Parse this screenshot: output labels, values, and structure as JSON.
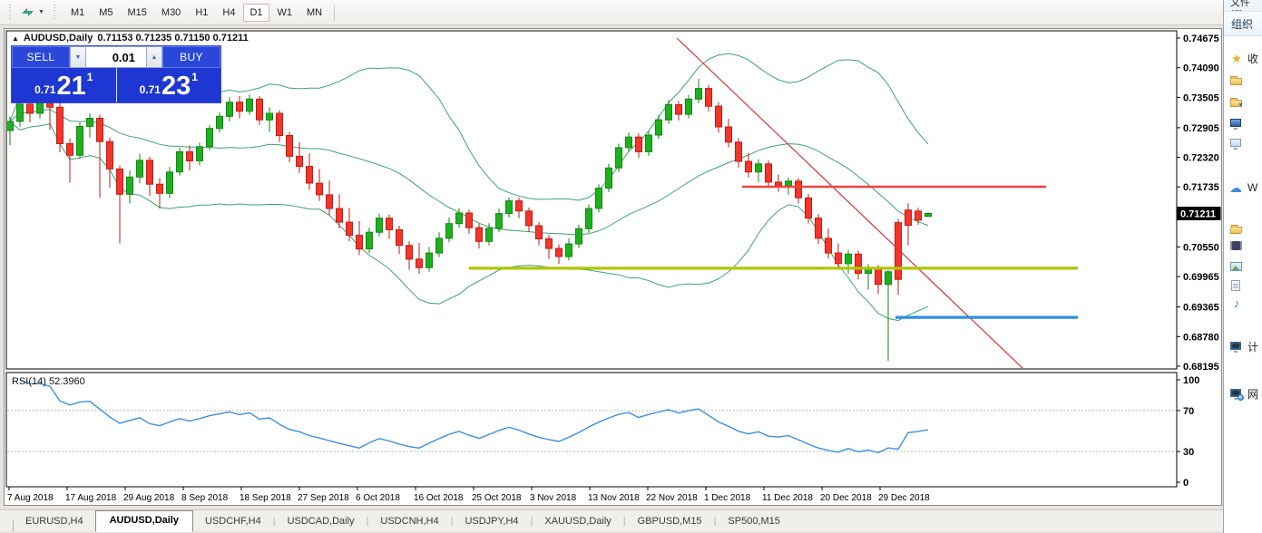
{
  "toolbar": {
    "timeframes": [
      "M1",
      "M5",
      "M15",
      "M30",
      "H1",
      "H4",
      "D1",
      "W1",
      "MN"
    ],
    "active_timeframe": "D1",
    "charts_icon": "charts-arrange-icon"
  },
  "chart": {
    "title": "AUDUSD,Daily",
    "title_marker": "▲",
    "ohlc_text": "0.71153 0.71235 0.71150 0.71211",
    "trade_panel": {
      "sell_label": "SELL",
      "buy_label": "BUY",
      "volume": "0.01",
      "spinner_up": "▲",
      "spinner_down": "▼",
      "sell_price_small": "0.71",
      "sell_price_big": "21",
      "sell_price_sup": "1",
      "buy_price_small": "0.71",
      "buy_price_big": "23",
      "buy_price_sup": "1"
    },
    "price_axis_labels": [
      "0.74675",
      "0.74090",
      "0.73505",
      "0.72905",
      "0.72320",
      "0.71735",
      "0.70550",
      "0.69965",
      "0.69365",
      "0.68780",
      "0.68195"
    ],
    "current_price": "0.71211",
    "date_labels": [
      "7 Aug 2018",
      "17 Aug 2018",
      "29 Aug 2018",
      "8 Sep 2018",
      "18 Sep 2018",
      "27 Sep 2018",
      "6 Oct 2018",
      "16 Oct 2018",
      "25 Oct 2018",
      "3 Nov 2018",
      "13 Nov 2018",
      "22 Nov 2018",
      "1 Dec 2018",
      "11 Dec 2018",
      "20 Dec 2018",
      "29 Dec 2018"
    ],
    "rsi_label": "RSI(14) 52.3960",
    "rsi_axis_labels": [
      "100",
      "70",
      "30",
      "0"
    ]
  },
  "chart_data": {
    "type": "candlestick",
    "symbol": "AUDUSD",
    "timeframe": "Daily",
    "title": "AUDUSD,Daily",
    "last_ohlc": {
      "open": 0.71153,
      "high": 0.71235,
      "low": 0.7115,
      "close": 0.71211
    },
    "current_price": 0.71211,
    "y_range": [
      0.68195,
      0.74675
    ],
    "price_axis_ticks": [
      0.74675,
      0.7409,
      0.73505,
      0.72905,
      0.7232,
      0.71735,
      0.7115,
      0.7055,
      0.69965,
      0.69365,
      0.6878,
      0.68195
    ],
    "x_tick_labels": [
      "7 Aug 2018",
      "17 Aug 2018",
      "29 Aug 2018",
      "8 Sep 2018",
      "18 Sep 2018",
      "27 Sep 2018",
      "6 Oct 2018",
      "16 Oct 2018",
      "25 Oct 2018",
      "3 Nov 2018",
      "13 Nov 2018",
      "22 Nov 2018",
      "1 Dec 2018",
      "11 Dec 2018",
      "20 Dec 2018",
      "29 Dec 2018"
    ],
    "grid": false,
    "colors": {
      "bull": "#1fb01f",
      "bull_border": "#128712",
      "bear": "#f3352b",
      "bear_border": "#bf1d15",
      "bands": "#3fa371",
      "rsi": "#3e8ee4",
      "trend": "#d93434",
      "res_red": "#f24141",
      "sup_olive": "#aec704",
      "sup_blue": "#2f8fe0"
    },
    "candles": [
      [
        0.7285,
        0.7312,
        0.7256,
        0.7303
      ],
      [
        0.7303,
        0.7346,
        0.7292,
        0.7337
      ],
      [
        0.7337,
        0.7349,
        0.7301,
        0.7319
      ],
      [
        0.7319,
        0.7356,
        0.7309,
        0.7343
      ],
      [
        0.7343,
        0.7351,
        0.7286,
        0.7331
      ],
      [
        0.7331,
        0.7341,
        0.7242,
        0.7259
      ],
      [
        0.7259,
        0.7269,
        0.7182,
        0.7236
      ],
      [
        0.7236,
        0.7301,
        0.7229,
        0.7293
      ],
      [
        0.7293,
        0.7319,
        0.7271,
        0.7309
      ],
      [
        0.7309,
        0.7316,
        0.7152,
        0.7263
      ],
      [
        0.7263,
        0.7271,
        0.7172,
        0.7209
      ],
      [
        0.7209,
        0.7216,
        0.7062,
        0.7159
      ],
      [
        0.7159,
        0.7206,
        0.7141,
        0.7193
      ],
      [
        0.7193,
        0.7239,
        0.7181,
        0.7226
      ],
      [
        0.7226,
        0.7233,
        0.7156,
        0.7179
      ],
      [
        0.7179,
        0.7191,
        0.7131,
        0.7161
      ],
      [
        0.7161,
        0.7213,
        0.7151,
        0.7203
      ],
      [
        0.7203,
        0.7251,
        0.7196,
        0.7243
      ],
      [
        0.7243,
        0.7256,
        0.7206,
        0.7225
      ],
      [
        0.7225,
        0.7261,
        0.7216,
        0.7253
      ],
      [
        0.7253,
        0.7296,
        0.7246,
        0.7289
      ],
      [
        0.7289,
        0.7321,
        0.7281,
        0.7313
      ],
      [
        0.7313,
        0.7351,
        0.7303,
        0.7341
      ],
      [
        0.7341,
        0.7353,
        0.7309,
        0.7323
      ],
      [
        0.7323,
        0.7356,
        0.7316,
        0.7347
      ],
      [
        0.7347,
        0.7353,
        0.7296,
        0.7306
      ],
      [
        0.7306,
        0.7331,
        0.7282,
        0.7319
      ],
      [
        0.7319,
        0.7325,
        0.7262,
        0.7275
      ],
      [
        0.7275,
        0.7282,
        0.7222,
        0.7234
      ],
      [
        0.7234,
        0.7262,
        0.7201,
        0.7214
      ],
      [
        0.7214,
        0.724,
        0.7168,
        0.7181
      ],
      [
        0.7181,
        0.7209,
        0.7146,
        0.7158
      ],
      [
        0.7158,
        0.7186,
        0.7118,
        0.7131
      ],
      [
        0.7131,
        0.7159,
        0.7092,
        0.7104
      ],
      [
        0.7104,
        0.7132,
        0.7066,
        0.7078
      ],
      [
        0.7078,
        0.7106,
        0.7039,
        0.7051
      ],
      [
        0.7051,
        0.7093,
        0.7043,
        0.7084
      ],
      [
        0.7084,
        0.7121,
        0.7076,
        0.7112
      ],
      [
        0.7112,
        0.7119,
        0.7071,
        0.7089
      ],
      [
        0.7089,
        0.7097,
        0.7041,
        0.7058
      ],
      [
        0.7058,
        0.7066,
        0.701,
        0.7031
      ],
      [
        0.7031,
        0.7063,
        0.7002,
        0.7014
      ],
      [
        0.7014,
        0.7055,
        0.7006,
        0.7043
      ],
      [
        0.7043,
        0.7084,
        0.7035,
        0.7072
      ],
      [
        0.7072,
        0.7113,
        0.7064,
        0.7101
      ],
      [
        0.7101,
        0.7132,
        0.7093,
        0.7122
      ],
      [
        0.7122,
        0.7129,
        0.7081,
        0.7093
      ],
      [
        0.7093,
        0.7101,
        0.7052,
        0.7066
      ],
      [
        0.7066,
        0.7102,
        0.7058,
        0.7092
      ],
      [
        0.7092,
        0.7131,
        0.7084,
        0.7121
      ],
      [
        0.7121,
        0.7153,
        0.7113,
        0.7146
      ],
      [
        0.7146,
        0.7153,
        0.7112,
        0.7126
      ],
      [
        0.7126,
        0.7133,
        0.7085,
        0.7097
      ],
      [
        0.7097,
        0.7104,
        0.7058,
        0.7071
      ],
      [
        0.7071,
        0.7079,
        0.7031,
        0.7052
      ],
      [
        0.7052,
        0.706,
        0.7021,
        0.7036
      ],
      [
        0.7036,
        0.7072,
        0.7028,
        0.7061
      ],
      [
        0.7061,
        0.7099,
        0.7053,
        0.7091
      ],
      [
        0.7091,
        0.7139,
        0.7083,
        0.7131
      ],
      [
        0.7131,
        0.7179,
        0.7123,
        0.7171
      ],
      [
        0.7171,
        0.7219,
        0.7163,
        0.7211
      ],
      [
        0.7211,
        0.7259,
        0.7203,
        0.7251
      ],
      [
        0.7251,
        0.7281,
        0.7243,
        0.7272
      ],
      [
        0.7272,
        0.7279,
        0.7231,
        0.7243
      ],
      [
        0.7243,
        0.7284,
        0.7235,
        0.7276
      ],
      [
        0.7276,
        0.7315,
        0.7268,
        0.7306
      ],
      [
        0.7306,
        0.7345,
        0.7298,
        0.7336
      ],
      [
        0.7336,
        0.7343,
        0.7305,
        0.7317
      ],
      [
        0.7317,
        0.7355,
        0.7309,
        0.7347
      ],
      [
        0.7347,
        0.7387,
        0.7339,
        0.7368
      ],
      [
        0.7368,
        0.7375,
        0.7322,
        0.7333
      ],
      [
        0.7333,
        0.7341,
        0.7281,
        0.7292
      ],
      [
        0.7292,
        0.7308,
        0.7252,
        0.7262
      ],
      [
        0.7262,
        0.727,
        0.7212,
        0.7224
      ],
      [
        0.7224,
        0.7241,
        0.7192,
        0.7203
      ],
      [
        0.7203,
        0.7228,
        0.7183,
        0.7219
      ],
      [
        0.7219,
        0.7226,
        0.7172,
        0.7183
      ],
      [
        0.7183,
        0.7198,
        0.7164,
        0.7176
      ],
      [
        0.7176,
        0.7192,
        0.7158,
        0.7185
      ],
      [
        0.7185,
        0.7191,
        0.7141,
        0.7152
      ],
      [
        0.7152,
        0.716,
        0.7101,
        0.7112
      ],
      [
        0.7112,
        0.712,
        0.7061,
        0.7072
      ],
      [
        0.7072,
        0.7091,
        0.7032,
        0.7043
      ],
      [
        0.7043,
        0.7062,
        0.7011,
        0.7022
      ],
      [
        0.7022,
        0.7049,
        0.7002,
        0.7041
      ],
      [
        0.7041,
        0.7048,
        0.6991,
        0.7003
      ],
      [
        0.7003,
        0.7021,
        0.6971,
        0.7012
      ],
      [
        0.7012,
        0.7019,
        0.6962,
        0.6981
      ],
      [
        0.6981,
        0.7009,
        0.683,
        0.7006
      ],
      [
        0.7103,
        0.711,
        0.696,
        0.6991
      ],
      [
        0.7128,
        0.7141,
        0.7058,
        0.7098
      ],
      [
        0.7126,
        0.7133,
        0.7099,
        0.7108
      ],
      [
        0.71153,
        0.71235,
        0.7115,
        0.71211
      ]
    ],
    "indicators": {
      "bollinger": {
        "period": 20,
        "deviation": 2
      },
      "rsi": {
        "period": 14,
        "value": 52.396,
        "levels": [
          70,
          30
        ],
        "range": [
          0,
          100
        ]
      }
    },
    "overlays": [
      {
        "type": "trendline",
        "color": "#d93434",
        "width": 1.2,
        "from": {
          "index": 66.8,
          "price": 0.7468
        },
        "to": {
          "index": 101.5,
          "price": 0.6814
        }
      },
      {
        "type": "hline",
        "color": "#f24141",
        "width": 2.4,
        "price": 0.7174,
        "from_index": 73.4,
        "to_index": 103.8
      },
      {
        "type": "hline",
        "color": "#aec704",
        "width": 3.2,
        "price": 0.7013,
        "from_index": 46.0,
        "to_index": 107.0
      },
      {
        "type": "hline",
        "color": "#2f8fe0",
        "width": 3.2,
        "price": 0.6916,
        "from_index": 88.7,
        "to_index": 107.0
      }
    ]
  },
  "tabs": {
    "items": [
      "EURUSD,H4",
      "AUDUSD,Daily",
      "USDCHF,H4",
      "USDCAD,Daily",
      "USDCNH,H4",
      "USDJPY,H4",
      "XAUUSD,Daily",
      "GBPUSD,M15",
      "SP500,M15"
    ],
    "active": "AUDUSD,Daily"
  },
  "explorer": {
    "menu_label": "文件(F)",
    "organize_label": "组织",
    "items": [
      {
        "icon": "star-icon",
        "label": "收"
      },
      {
        "icon": "folder-icon",
        "label": ""
      },
      {
        "icon": "folder-download-icon",
        "label": ""
      },
      {
        "icon": "desktop-icon",
        "label": ""
      },
      {
        "icon": "recent-places-icon",
        "label": ""
      },
      {
        "icon": "cloud-icon",
        "label": "W"
      },
      {
        "icon": "libraries-icon",
        "label": ""
      },
      {
        "icon": "videos-icon",
        "label": ""
      },
      {
        "icon": "pictures-icon",
        "label": ""
      },
      {
        "icon": "documents-icon",
        "label": ""
      },
      {
        "icon": "music-icon",
        "label": ""
      },
      {
        "icon": "computer-icon",
        "label": "计"
      },
      {
        "icon": "network-icon",
        "label": "网"
      }
    ],
    "glyphs": {
      "star": "★",
      "cloud": "☁",
      "music": "♪"
    }
  }
}
